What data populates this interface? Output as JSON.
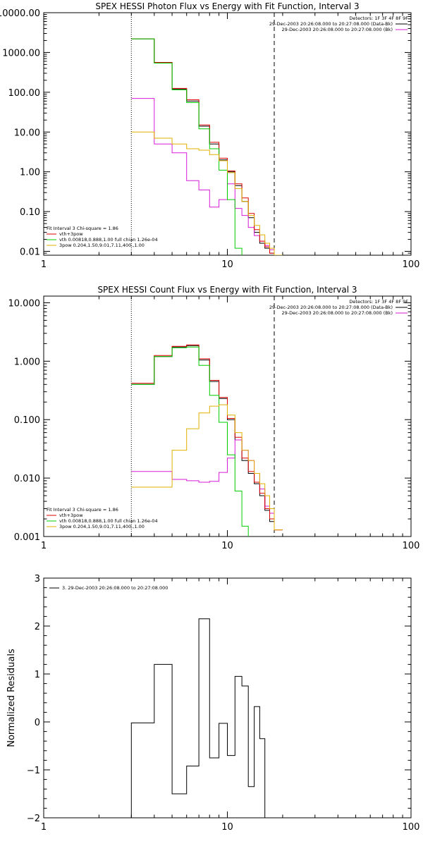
{
  "chart_data": [
    {
      "type": "line",
      "title": "SPEX HESSI Photon Flux vs Energy with Fit Function, Interval 3",
      "xscale": "log",
      "yscale": "log",
      "xlim": [
        1,
        100
      ],
      "ylim": [
        0.008,
        10000
      ],
      "xticks": [
        1,
        10,
        100
      ],
      "xtick_labels": [
        "1",
        "10",
        "100"
      ],
      "yticks": [
        0.01,
        0.1,
        1,
        10,
        100,
        1000,
        10000
      ],
      "ytick_labels": [
        "0.01",
        "0.10",
        "1.00",
        "10.00",
        "100.00",
        "1000.00",
        "10000.00"
      ],
      "legend_top": [
        "Detectors: 1F 3F 4F 8F 9F",
        "29-Dec-2003 20:26:08.000 to 20:27:08.000 (Data-Bk)",
        "29-Dec-2003 20:26:08.000 to 20:27:08.000 (Bk)"
      ],
      "legend_top_colors": [
        "",
        "#000000",
        "#d81bd8"
      ],
      "legend_bottom": [
        "Fit Interval 3   Chi-square = 1.86",
        "vth+3pow",
        "vth 0.00818,0.888,1.00   full chian 1.26e-04",
        "3pow 0.204,1.50,9.01,7.11,400.,1.00"
      ],
      "legend_bottom_colors": [
        "",
        "#dd0000",
        "#00cc00",
        "#e0b000"
      ],
      "vlines": [
        {
          "x": 3.0,
          "style": "dotted"
        },
        {
          "x": 18.0,
          "style": "dashed"
        }
      ],
      "edges": [
        3.0,
        4.0,
        5.0,
        6.0,
        7.0,
        8.0,
        9.0,
        10.0,
        11.0,
        12.0,
        13.0,
        14.0,
        15.0,
        16.0,
        17.0,
        18.0,
        20.0
      ],
      "series": [
        {
          "name": "Data-Bk",
          "color": "#000000",
          "values": [
            2200,
            560,
            120,
            60,
            14,
            5.0,
            2.0,
            1.0,
            0.45,
            0.18,
            0.07,
            0.03,
            0.016,
            0.012,
            0.009
          ]
        },
        {
          "name": "Bk",
          "color": "#d81bd8",
          "values": [
            70,
            5.0,
            3.0,
            0.6,
            0.35,
            0.13,
            0.2,
            0.5,
            0.12,
            0.08,
            0.04,
            0.025,
            0.018,
            0.014,
            0.011
          ]
        },
        {
          "name": "vth+3pow",
          "color": "#dd0000",
          "values": [
            2200,
            560,
            125,
            65,
            15,
            5.5,
            2.2,
            1.05,
            0.5,
            0.22,
            0.09,
            0.035,
            0.018,
            0.013,
            0.009
          ]
        },
        {
          "name": "vth",
          "color": "#00cc00",
          "values": [
            2200,
            540,
            115,
            55,
            12,
            3.8,
            1.1,
            0.2,
            0.012,
            0.002
          ]
        },
        {
          "name": "3pow",
          "color": "#e0b000",
          "values": [
            10.0,
            7.0,
            5.0,
            3.8,
            3.5,
            2.7,
            1.9,
            0.95,
            0.38,
            0.18,
            0.08,
            0.045,
            0.026,
            0.016,
            0.012,
            0.008
          ]
        }
      ]
    },
    {
      "type": "line",
      "title": "SPEX HESSI Count Flux vs Energy with Fit Function, Interval 3",
      "xscale": "log",
      "yscale": "log",
      "xlim": [
        1,
        100
      ],
      "ylim": [
        0.001,
        13
      ],
      "xticks": [
        1,
        10,
        100
      ],
      "xtick_labels": [
        "1",
        "10",
        "100"
      ],
      "yticks": [
        0.001,
        0.01,
        0.1,
        1,
        10
      ],
      "ytick_labels": [
        "0.001",
        "0.010",
        "0.100",
        "1.000",
        "10.000"
      ],
      "legend_top": [
        "Detectors: 1F 3F 4F 8F 9F",
        "29-Dec-2003 20:26:08.000 to 20:27:08.000 (Data-Bk)",
        "29-Dec-2003 20:26:08.000 to 20:27:08.000 (Bk)"
      ],
      "legend_top_colors": [
        "",
        "#000000",
        "#d81bd8"
      ],
      "legend_bottom": [
        "Fit Interval 3   Chi-square = 1.86",
        "vth+3pow",
        "vth 0.00818,0.888,1.00   full chian 1.26e-04",
        "3pow 0.204,1.50,9.01,7.11,400.,1.00"
      ],
      "legend_bottom_colors": [
        "",
        "#dd0000",
        "#00cc00",
        "#e0b000"
      ],
      "vlines": [
        {
          "x": 3.0,
          "style": "dotted"
        },
        {
          "x": 18.0,
          "style": "dashed"
        }
      ],
      "edges": [
        3.0,
        4.0,
        5.0,
        6.0,
        7.0,
        8.0,
        9.0,
        10.0,
        11.0,
        12.0,
        13.0,
        14.0,
        15.0,
        16.0,
        17.0,
        18.0,
        20.0
      ],
      "series": [
        {
          "name": "Data-Bk",
          "color": "#000000",
          "values": [
            0.4,
            1.2,
            1.75,
            1.85,
            1.05,
            0.45,
            0.23,
            0.1,
            0.045,
            0.02,
            0.012,
            0.008,
            0.005,
            0.0028,
            0.0018
          ]
        },
        {
          "name": "Bk",
          "color": "#d81bd8",
          "values": [
            0.013,
            0.013,
            0.0095,
            0.009,
            0.0085,
            0.0088,
            0.0125,
            0.022,
            0.045,
            0.03,
            0.02,
            0.012,
            0.0065,
            0.0033,
            0.0025,
            0.0013
          ]
        },
        {
          "name": "vth+3pow",
          "color": "#dd0000",
          "values": [
            0.42,
            1.25,
            1.8,
            1.9,
            1.1,
            0.47,
            0.24,
            0.105,
            0.05,
            0.022,
            0.013,
            0.0085,
            0.0055,
            0.003,
            0.002,
            0.0013
          ]
        },
        {
          "name": "vth",
          "color": "#00cc00",
          "values": [
            0.4,
            1.2,
            1.7,
            1.75,
            0.85,
            0.26,
            0.09,
            0.025,
            0.006,
            0.0015,
            0.0008
          ]
        },
        {
          "name": "3pow",
          "color": "#e0b000",
          "values": [
            0.007,
            0.007,
            0.03,
            0.07,
            0.13,
            0.17,
            0.18,
            0.12,
            0.06,
            0.03,
            0.02,
            0.012,
            0.008,
            0.005,
            0.003,
            0.0013
          ]
        }
      ]
    },
    {
      "type": "line",
      "title": "",
      "xscale": "log",
      "yscale": "linear",
      "xlim": [
        1,
        100
      ],
      "ylim": [
        -2,
        3
      ],
      "xticks": [
        1,
        10,
        100
      ],
      "xtick_labels": [
        "1",
        "10",
        "100"
      ],
      "yticks": [
        -2,
        -1,
        0,
        1,
        2,
        3
      ],
      "ytick_labels": [
        "−2",
        "−1",
        "0",
        "1",
        "2",
        "3"
      ],
      "ylabel": "Normalized Residuals",
      "legend_top_left": "3. 29-Dec-2003 20:26:08.000 to 20:27:08.000",
      "edges": [
        3.0,
        4.0,
        5.0,
        6.0,
        7.0,
        8.0,
        9.0,
        10.0,
        11.0,
        12.0,
        13.0,
        14.0,
        15.0,
        16.0,
        17.0,
        18.0
      ],
      "series": [
        {
          "name": "",
          "color": "#000000",
          "values": [
            -0.02,
            1.2,
            -1.5,
            -0.92,
            2.15,
            -0.75,
            -0.03,
            -0.7,
            0.95,
            0.75,
            -1.35,
            0.32,
            -0.35
          ]
        }
      ]
    }
  ]
}
